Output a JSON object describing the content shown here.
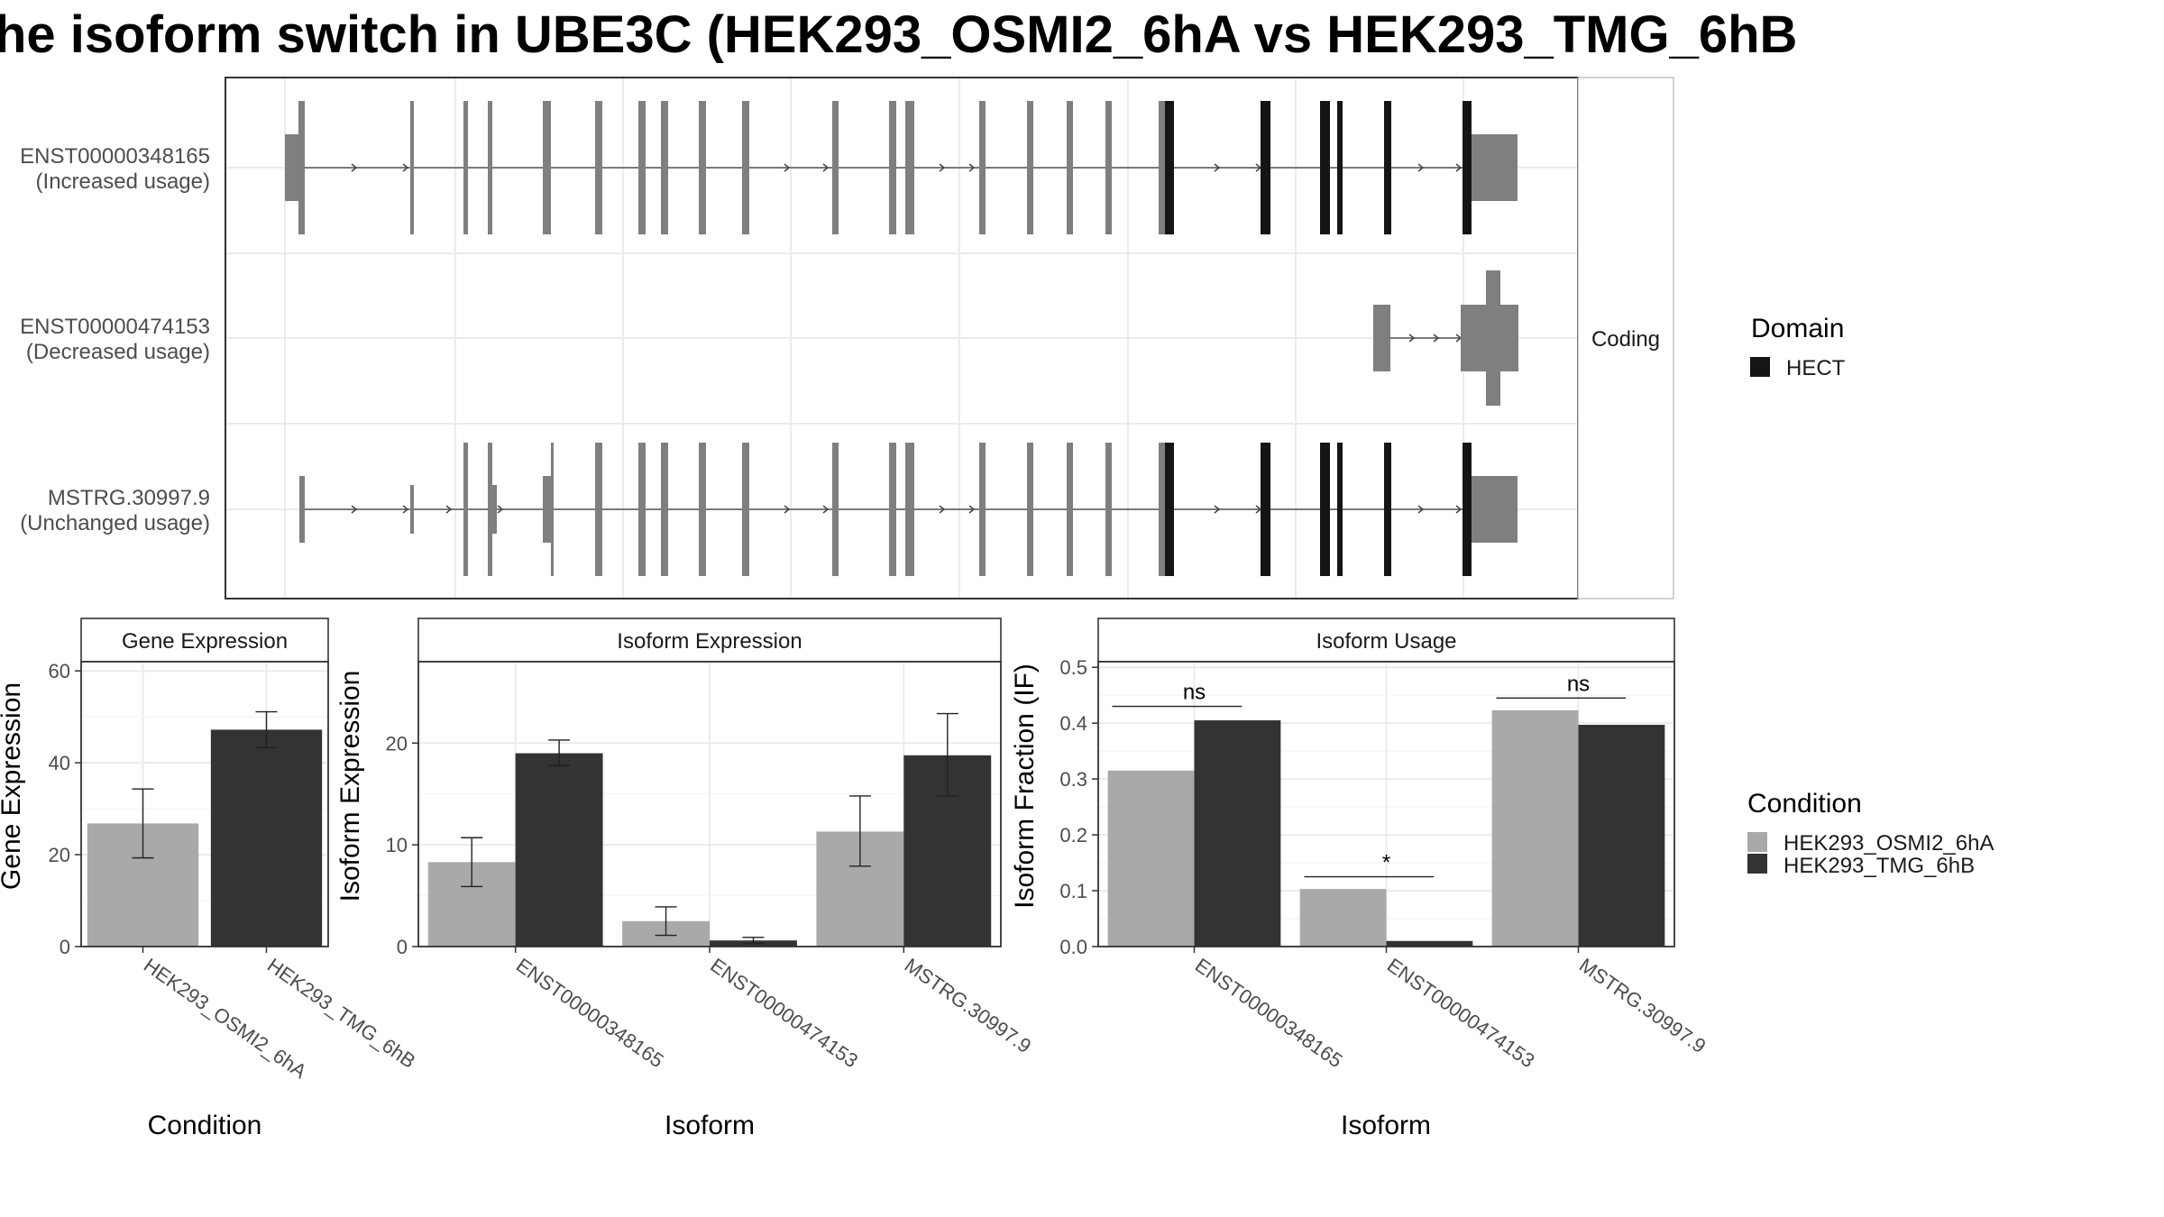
{
  "title": "he isoform switch in UBE3C (HEK293_OSMI2_6hA vs HEK293_TMG_6hB",
  "colors": {
    "cond_a": "#a9a9a9",
    "cond_b": "#333333",
    "exon_noncoding": "#7f7f7f",
    "domain_hect": "#151515",
    "panel_border": "#333333",
    "strip_bg": "#ffffff",
    "grid": "#ebebeb"
  },
  "transcript_panel": {
    "strip_label": "Coding",
    "rows": [
      {
        "id": "ENST00000348165",
        "usage": "(Increased usage)"
      },
      {
        "id": "ENST00000474153",
        "usage": "(Decreased usage)"
      },
      {
        "id": "MSTRG.30997.9",
        "usage": "(Unchanged usage)"
      }
    ]
  },
  "legend_domain": {
    "title": "Domain",
    "items": [
      {
        "label": "HECT",
        "color": "#151515"
      }
    ]
  },
  "legend_condition": {
    "title": "Condition",
    "items": [
      {
        "label": "HEK293_OSMI2_6hA",
        "color": "#a9a9a9"
      },
      {
        "label": "HEK293_TMG_6hB",
        "color": "#333333"
      }
    ]
  },
  "chart_data": [
    {
      "type": "bar",
      "title": "Gene Expression",
      "xlabel": "Condition",
      "ylabel": "Gene Expression",
      "ylim": [
        0,
        62
      ],
      "yticks": [
        0,
        20,
        40,
        60
      ],
      "categories": [
        "HEK293_OSMI2_6hA",
        "HEK293_TMG_6hB"
      ],
      "values": [
        26.8,
        47.2
      ],
      "error": [
        [
          19.3,
          34.3
        ],
        [
          43.3,
          51.1
        ]
      ],
      "grid": true
    },
    {
      "type": "bar",
      "title": "Isoform Expression",
      "xlabel": "Isoform",
      "ylabel": "Isoform Expression",
      "ylim": [
        0,
        28
      ],
      "yticks": [
        0,
        10,
        20
      ],
      "categories": [
        "ENST00000348165",
        "ENST00000474153",
        "MSTRG.30997.9"
      ],
      "series": [
        {
          "name": "HEK293_OSMI2_6hA",
          "values": [
            8.3,
            2.5,
            11.3
          ],
          "error": [
            [
              5.9,
              10.7
            ],
            [
              1.1,
              3.9
            ],
            [
              7.9,
              14.8
            ]
          ]
        },
        {
          "name": "HEK293_TMG_6hB",
          "values": [
            19.0,
            0.6,
            18.8
          ],
          "error": [
            [
              17.8,
              20.3
            ],
            [
              0.3,
              0.9
            ],
            [
              14.8,
              22.9
            ]
          ]
        }
      ],
      "grid": true
    },
    {
      "type": "bar",
      "title": "Isoform Usage",
      "xlabel": "Isoform",
      "ylabel": "Isoform Fraction (IF)",
      "ylim": [
        0,
        0.51
      ],
      "yticks": [
        0.0,
        0.1,
        0.2,
        0.3,
        0.4,
        0.5
      ],
      "categories": [
        "ENST00000348165",
        "ENST00000474153",
        "MSTRG.30997.9"
      ],
      "series": [
        {
          "name": "HEK293_OSMI2_6hA",
          "values": [
            0.315,
            0.103,
            0.423
          ]
        },
        {
          "name": "HEK293_TMG_6hB",
          "values": [
            0.405,
            0.01,
            0.397
          ]
        }
      ],
      "annotations": [
        "ns",
        "*",
        "ns"
      ],
      "annotation_y": [
        0.43,
        0.125,
        0.445
      ],
      "grid": true
    }
  ]
}
